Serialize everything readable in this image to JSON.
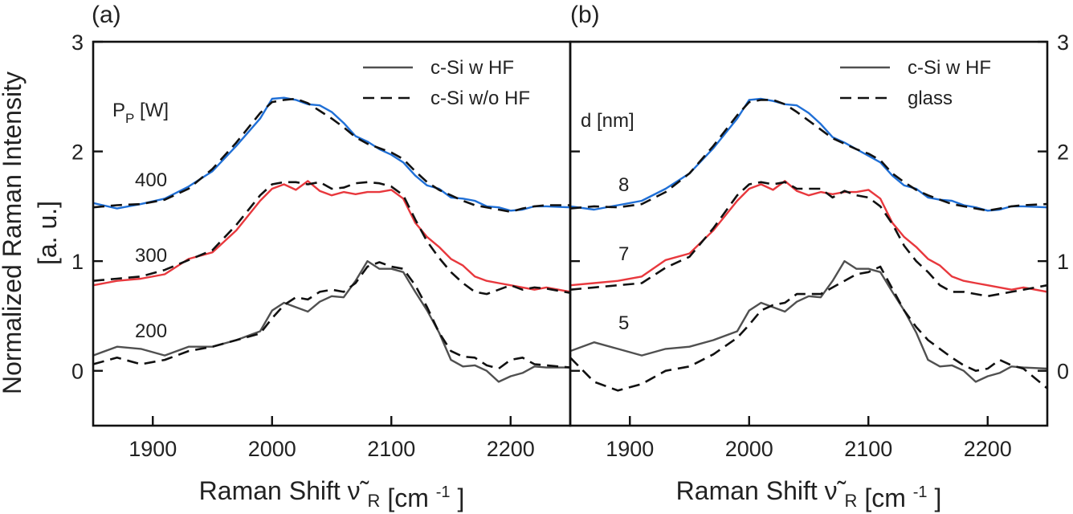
{
  "chart_data": {
    "type": "line",
    "y_axis_title": "Normalized Raman Intensity",
    "y_axis_unit": "[a. u.]",
    "ylim": [
      -0.5,
      3
    ],
    "yticks": [
      0,
      1,
      2,
      3
    ],
    "xlim": [
      1850,
      2250
    ],
    "xticks": [
      1900,
      2000,
      2100,
      2200
    ],
    "x_axis_title": {
      "main": "Raman Shift",
      "symbol": "ν̃",
      "sub": "R",
      "unit_open": "[cm",
      "unit_sup": "-1",
      "unit_close": "]"
    },
    "panels": [
      {
        "label": "(a)",
        "group_title": {
          "main": "P",
          "sub": "P",
          "rest": " [W]"
        },
        "legend": [
          {
            "label": "c-Si w HF",
            "style": "solid"
          },
          {
            "label": "c-Si w/o HF",
            "style": "dashed"
          }
        ],
        "annotations": [
          "400",
          "300",
          "200"
        ],
        "series": [
          {
            "name": "c-Si w HF",
            "group": "400",
            "style": "solid",
            "color": "#1f6fd6",
            "x": [
              1850,
              1870,
              1890,
              1910,
              1930,
              1950,
              1970,
              1990,
              2000,
              2010,
              2020,
              2030,
              2040,
              2050,
              2060,
              2070,
              2080,
              2090,
              2100,
              2110,
              2120,
              2130,
              2140,
              2150,
              2160,
              2170,
              2180,
              2190,
              2200,
              2210,
              2220,
              2230,
              2250
            ],
            "y": [
              1.53,
              1.48,
              1.52,
              1.57,
              1.68,
              1.82,
              2.05,
              2.3,
              2.48,
              2.49,
              2.47,
              2.43,
              2.42,
              2.36,
              2.26,
              2.14,
              2.09,
              2.02,
              1.97,
              1.9,
              1.78,
              1.69,
              1.66,
              1.58,
              1.57,
              1.55,
              1.5,
              1.49,
              1.46,
              1.47,
              1.5,
              1.5,
              1.49
            ]
          },
          {
            "name": "c-Si w/o HF",
            "group": "400",
            "style": "dashed",
            "color": "#111111",
            "x": [
              1850,
              1870,
              1890,
              1910,
              1930,
              1950,
              1970,
              1990,
              2000,
              2010,
              2020,
              2030,
              2040,
              2050,
              2060,
              2070,
              2080,
              2090,
              2100,
              2110,
              2120,
              2130,
              2140,
              2150,
              2160,
              2170,
              2180,
              2190,
              2200,
              2210,
              2220,
              2230,
              2250
            ],
            "y": [
              1.49,
              1.51,
              1.52,
              1.56,
              1.66,
              1.84,
              2.08,
              2.35,
              2.45,
              2.47,
              2.48,
              2.44,
              2.37,
              2.3,
              2.22,
              2.13,
              2.07,
              2.03,
              1.99,
              1.93,
              1.82,
              1.72,
              1.65,
              1.6,
              1.55,
              1.51,
              1.49,
              1.47,
              1.45,
              1.48,
              1.5,
              1.51,
              1.51
            ]
          },
          {
            "name": "c-Si w HF",
            "group": "300",
            "style": "solid",
            "color": "#e8383d",
            "x": [
              1850,
              1870,
              1890,
              1910,
              1930,
              1950,
              1970,
              1990,
              2000,
              2010,
              2020,
              2030,
              2040,
              2050,
              2060,
              2070,
              2080,
              2090,
              2100,
              2110,
              2120,
              2130,
              2140,
              2150,
              2160,
              2170,
              2180,
              2190,
              2200,
              2210,
              2220,
              2230,
              2250
            ],
            "y": [
              0.78,
              0.82,
              0.84,
              0.88,
              1.02,
              1.08,
              1.28,
              1.55,
              1.66,
              1.7,
              1.65,
              1.73,
              1.64,
              1.6,
              1.63,
              1.61,
              1.63,
              1.63,
              1.65,
              1.57,
              1.35,
              1.22,
              1.13,
              1.02,
              0.96,
              0.86,
              0.82,
              0.8,
              0.78,
              0.76,
              0.74,
              0.76,
              0.72
            ]
          },
          {
            "name": "c-Si w/o HF",
            "group": "300",
            "style": "dashed",
            "color": "#111111",
            "x": [
              1850,
              1870,
              1890,
              1910,
              1930,
              1950,
              1970,
              1990,
              2000,
              2010,
              2020,
              2030,
              2040,
              2050,
              2060,
              2070,
              2080,
              2090,
              2100,
              2110,
              2120,
              2130,
              2140,
              2150,
              2160,
              2170,
              2180,
              2190,
              2200,
              2210,
              2220,
              2230,
              2250
            ],
            "y": [
              0.82,
              0.84,
              0.86,
              0.92,
              1.01,
              1.1,
              1.33,
              1.6,
              1.7,
              1.72,
              1.72,
              1.7,
              1.72,
              1.66,
              1.67,
              1.71,
              1.72,
              1.71,
              1.68,
              1.6,
              1.38,
              1.18,
              1.03,
              0.9,
              0.8,
              0.72,
              0.7,
              0.74,
              0.78,
              0.74,
              0.76,
              0.75,
              0.71
            ]
          },
          {
            "name": "c-Si w HF",
            "group": "200",
            "style": "solid",
            "color": "#505050",
            "x": [
              1850,
              1870,
              1890,
              1910,
              1930,
              1950,
              1970,
              1990,
              2000,
              2010,
              2020,
              2030,
              2040,
              2050,
              2060,
              2070,
              2080,
              2090,
              2100,
              2110,
              2120,
              2130,
              2140,
              2150,
              2160,
              2170,
              2180,
              2190,
              2200,
              2210,
              2220,
              2230,
              2250
            ],
            "y": [
              0.14,
              0.22,
              0.2,
              0.14,
              0.22,
              0.22,
              0.28,
              0.36,
              0.55,
              0.62,
              0.58,
              0.54,
              0.63,
              0.68,
              0.67,
              0.82,
              1.0,
              0.93,
              0.93,
              0.9,
              0.72,
              0.55,
              0.35,
              0.1,
              0.04,
              0.05,
              0.0,
              -0.1,
              -0.05,
              -0.02,
              0.04,
              0.03,
              0.03
            ]
          },
          {
            "name": "c-Si w/o HF",
            "group": "200",
            "style": "dashed",
            "color": "#111111",
            "x": [
              1850,
              1870,
              1890,
              1910,
              1930,
              1950,
              1970,
              1990,
              2000,
              2010,
              2020,
              2030,
              2040,
              2050,
              2060,
              2070,
              2080,
              2090,
              2100,
              2110,
              2120,
              2130,
              2140,
              2150,
              2160,
              2170,
              2180,
              2190,
              2200,
              2210,
              2220,
              2230,
              2250
            ],
            "y": [
              0.06,
              0.12,
              0.06,
              0.1,
              0.18,
              0.22,
              0.28,
              0.34,
              0.48,
              0.6,
              0.67,
              0.65,
              0.72,
              0.74,
              0.72,
              0.8,
              0.95,
              0.99,
              0.95,
              0.93,
              0.78,
              0.58,
              0.35,
              0.18,
              0.13,
              0.12,
              0.05,
              0.02,
              0.1,
              0.12,
              0.06,
              0.05,
              0.03
            ]
          }
        ]
      },
      {
        "label": "(b)",
        "group_title": {
          "main": "d [nm]",
          "sub": "",
          "rest": ""
        },
        "legend": [
          {
            "label": "c-Si w HF",
            "style": "solid"
          },
          {
            "label": "glass",
            "style": "dashed"
          }
        ],
        "annotations": [
          "8",
          "7",
          "5"
        ],
        "series": [
          {
            "name": "c-Si w HF",
            "group": "8",
            "style": "solid",
            "color": "#1f6fd6",
            "x": [
              1850,
              1870,
              1890,
              1910,
              1930,
              1950,
              1970,
              1990,
              2000,
              2010,
              2020,
              2030,
              2040,
              2050,
              2060,
              2070,
              2080,
              2090,
              2100,
              2110,
              2120,
              2130,
              2140,
              2150,
              2160,
              2170,
              2180,
              2190,
              2200,
              2210,
              2220,
              2230,
              2250
            ],
            "y": [
              1.5,
              1.47,
              1.51,
              1.55,
              1.66,
              1.8,
              2.03,
              2.3,
              2.47,
              2.48,
              2.46,
              2.43,
              2.42,
              2.35,
              2.25,
              2.13,
              2.08,
              2.02,
              1.96,
              1.9,
              1.78,
              1.69,
              1.66,
              1.58,
              1.56,
              1.55,
              1.51,
              1.49,
              1.46,
              1.47,
              1.5,
              1.5,
              1.49
            ]
          },
          {
            "name": "glass",
            "group": "8",
            "style": "dashed",
            "color": "#111111",
            "x": [
              1850,
              1870,
              1890,
              1910,
              1930,
              1950,
              1970,
              1990,
              2000,
              2010,
              2020,
              2030,
              2040,
              2050,
              2060,
              2070,
              2080,
              2090,
              2100,
              2110,
              2120,
              2130,
              2140,
              2150,
              2160,
              2170,
              2180,
              2190,
              2200,
              2210,
              2220,
              2230,
              2250
            ],
            "y": [
              1.48,
              1.5,
              1.49,
              1.52,
              1.63,
              1.8,
              2.05,
              2.33,
              2.45,
              2.47,
              2.47,
              2.43,
              2.36,
              2.28,
              2.2,
              2.12,
              2.07,
              2.02,
              1.98,
              1.92,
              1.8,
              1.72,
              1.65,
              1.6,
              1.56,
              1.52,
              1.5,
              1.48,
              1.46,
              1.48,
              1.5,
              1.51,
              1.52
            ]
          },
          {
            "name": "c-Si w HF",
            "group": "7",
            "style": "solid",
            "color": "#e8383d",
            "x": [
              1850,
              1870,
              1890,
              1910,
              1930,
              1950,
              1970,
              1990,
              2000,
              2010,
              2020,
              2030,
              2040,
              2050,
              2060,
              2070,
              2080,
              2090,
              2100,
              2110,
              2120,
              2130,
              2140,
              2150,
              2160,
              2170,
              2180,
              2190,
              2200,
              2210,
              2220,
              2230,
              2250
            ],
            "y": [
              0.78,
              0.8,
              0.82,
              0.86,
              1.01,
              1.07,
              1.28,
              1.55,
              1.66,
              1.7,
              1.65,
              1.73,
              1.64,
              1.6,
              1.63,
              1.61,
              1.63,
              1.63,
              1.65,
              1.57,
              1.35,
              1.22,
              1.13,
              1.02,
              0.96,
              0.86,
              0.82,
              0.8,
              0.78,
              0.76,
              0.74,
              0.76,
              0.72
            ]
          },
          {
            "name": "glass",
            "group": "7",
            "style": "dashed",
            "color": "#111111",
            "x": [
              1850,
              1870,
              1890,
              1910,
              1930,
              1950,
              1970,
              1990,
              2000,
              2010,
              2020,
              2030,
              2040,
              2050,
              2060,
              2070,
              2080,
              2090,
              2100,
              2110,
              2120,
              2130,
              2140,
              2150,
              2160,
              2170,
              2180,
              2190,
              2200,
              2210,
              2220,
              2230,
              2250
            ],
            "y": [
              0.74,
              0.76,
              0.78,
              0.8,
              0.94,
              1.04,
              1.3,
              1.6,
              1.7,
              1.72,
              1.7,
              1.72,
              1.66,
              1.66,
              1.66,
              1.58,
              1.64,
              1.6,
              1.58,
              1.5,
              1.34,
              1.14,
              1.0,
              0.9,
              0.78,
              0.72,
              0.72,
              0.7,
              0.68,
              0.7,
              0.72,
              0.74,
              0.78
            ]
          },
          {
            "name": "c-Si w HF",
            "group": "5",
            "style": "solid",
            "color": "#505050",
            "x": [
              1850,
              1870,
              1890,
              1910,
              1930,
              1950,
              1970,
              1990,
              2000,
              2010,
              2020,
              2030,
              2040,
              2050,
              2060,
              2070,
              2080,
              2090,
              2100,
              2110,
              2120,
              2130,
              2140,
              2150,
              2160,
              2170,
              2180,
              2190,
              2200,
              2210,
              2220,
              2230,
              2250
            ],
            "y": [
              0.18,
              0.26,
              0.2,
              0.14,
              0.2,
              0.22,
              0.28,
              0.36,
              0.55,
              0.62,
              0.58,
              0.54,
              0.63,
              0.68,
              0.67,
              0.82,
              1.0,
              0.93,
              0.93,
              0.9,
              0.72,
              0.55,
              0.35,
              0.1,
              0.04,
              0.05,
              0.0,
              -0.1,
              -0.05,
              -0.02,
              0.04,
              0.03,
              0.02
            ]
          },
          {
            "name": "glass",
            "group": "5",
            "style": "dashed",
            "color": "#111111",
            "x": [
              1850,
              1870,
              1890,
              1910,
              1930,
              1950,
              1970,
              1990,
              2000,
              2010,
              2020,
              2030,
              2040,
              2050,
              2060,
              2070,
              2080,
              2090,
              2100,
              2110,
              2120,
              2130,
              2140,
              2150,
              2160,
              2170,
              2180,
              2190,
              2200,
              2210,
              2220,
              2230,
              2250
            ],
            "y": [
              0.12,
              -0.1,
              -0.18,
              -0.12,
              0.0,
              0.04,
              0.15,
              0.3,
              0.42,
              0.55,
              0.6,
              0.62,
              0.7,
              0.7,
              0.7,
              0.76,
              0.82,
              0.88,
              0.9,
              0.95,
              0.75,
              0.55,
              0.4,
              0.28,
              0.2,
              0.12,
              0.05,
              0.0,
              0.02,
              0.1,
              0.05,
              0.02,
              -0.16
            ]
          }
        ]
      }
    ]
  }
}
